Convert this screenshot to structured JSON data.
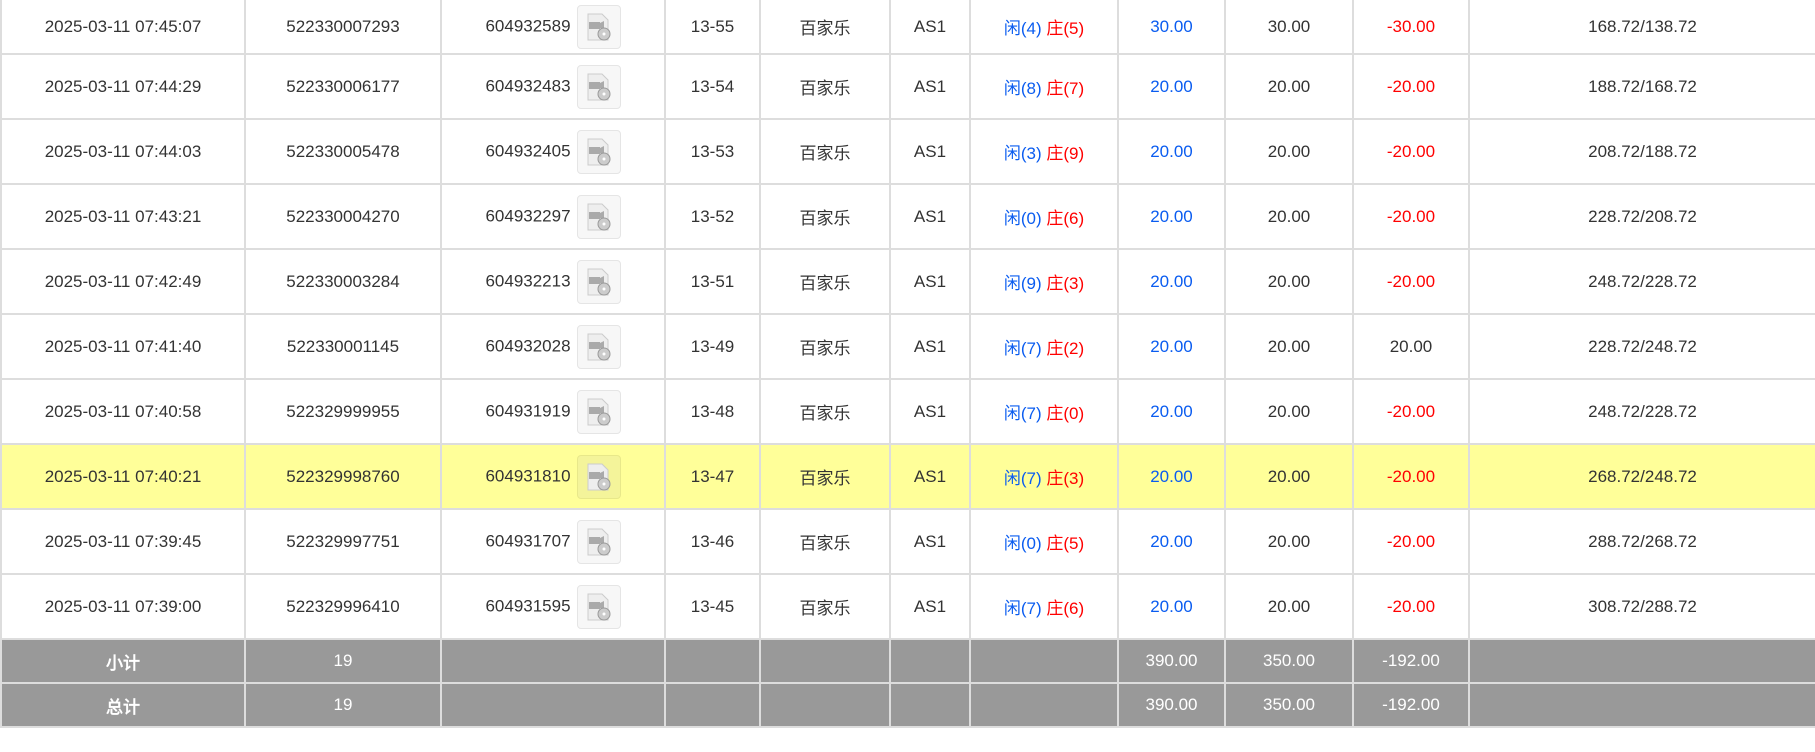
{
  "rows": [
    {
      "time": "2025-03-11 07:45:07",
      "bet_id": "522330007293",
      "round_id": "604932589",
      "shoe": "13-55",
      "game": "百家乐",
      "table": "AS1",
      "player": "闲(4)",
      "banker": "庄(5)",
      "bet": "30.00",
      "valid": "30.00",
      "win": "-30.00",
      "win_color": "red",
      "balance": "168.72/138.72"
    },
    {
      "time": "2025-03-11 07:44:29",
      "bet_id": "522330006177",
      "round_id": "604932483",
      "shoe": "13-54",
      "game": "百家乐",
      "table": "AS1",
      "player": "闲(8)",
      "banker": "庄(7)",
      "bet": "20.00",
      "valid": "20.00",
      "win": "-20.00",
      "win_color": "red",
      "balance": "188.72/168.72"
    },
    {
      "time": "2025-03-11 07:44:03",
      "bet_id": "522330005478",
      "round_id": "604932405",
      "shoe": "13-53",
      "game": "百家乐",
      "table": "AS1",
      "player": "闲(3)",
      "banker": "庄(9)",
      "bet": "20.00",
      "valid": "20.00",
      "win": "-20.00",
      "win_color": "red",
      "balance": "208.72/188.72"
    },
    {
      "time": "2025-03-11 07:43:21",
      "bet_id": "522330004270",
      "round_id": "604932297",
      "shoe": "13-52",
      "game": "百家乐",
      "table": "AS1",
      "player": "闲(0)",
      "banker": "庄(6)",
      "bet": "20.00",
      "valid": "20.00",
      "win": "-20.00",
      "win_color": "red",
      "balance": "228.72/208.72"
    },
    {
      "time": "2025-03-11 07:42:49",
      "bet_id": "522330003284",
      "round_id": "604932213",
      "shoe": "13-51",
      "game": "百家乐",
      "table": "AS1",
      "player": "闲(9)",
      "banker": "庄(3)",
      "bet": "20.00",
      "valid": "20.00",
      "win": "-20.00",
      "win_color": "red",
      "balance": "248.72/228.72"
    },
    {
      "time": "2025-03-11 07:41:40",
      "bet_id": "522330001145",
      "round_id": "604932028",
      "shoe": "13-49",
      "game": "百家乐",
      "table": "AS1",
      "player": "闲(7)",
      "banker": "庄(2)",
      "bet": "20.00",
      "valid": "20.00",
      "win": "20.00",
      "win_color": "black",
      "balance": "228.72/248.72"
    },
    {
      "time": "2025-03-11 07:40:58",
      "bet_id": "522329999955",
      "round_id": "604931919",
      "shoe": "13-48",
      "game": "百家乐",
      "table": "AS1",
      "player": "闲(7)",
      "banker": "庄(0)",
      "bet": "20.00",
      "valid": "20.00",
      "win": "-20.00",
      "win_color": "red",
      "balance": "248.72/228.72"
    },
    {
      "time": "2025-03-11 07:40:21",
      "bet_id": "522329998760",
      "round_id": "604931810",
      "shoe": "13-47",
      "game": "百家乐",
      "table": "AS1",
      "player": "闲(7)",
      "banker": "庄(3)",
      "bet": "20.00",
      "valid": "20.00",
      "win": "-20.00",
      "win_color": "red",
      "balance": "268.72/248.72",
      "highlighted": true
    },
    {
      "time": "2025-03-11 07:39:45",
      "bet_id": "522329997751",
      "round_id": "604931707",
      "shoe": "13-46",
      "game": "百家乐",
      "table": "AS1",
      "player": "闲(0)",
      "banker": "庄(5)",
      "bet": "20.00",
      "valid": "20.00",
      "win": "-20.00",
      "win_color": "red",
      "balance": "288.72/268.72"
    },
    {
      "time": "2025-03-11 07:39:00",
      "bet_id": "522329996410",
      "round_id": "604931595",
      "shoe": "13-45",
      "game": "百家乐",
      "table": "AS1",
      "player": "闲(7)",
      "banker": "庄(6)",
      "bet": "20.00",
      "valid": "20.00",
      "win": "-20.00",
      "win_color": "red",
      "balance": "308.72/288.72"
    }
  ],
  "subtotal": {
    "label": "小计",
    "count": "19",
    "bet": "390.00",
    "valid": "350.00",
    "win": "-192.00"
  },
  "total": {
    "label": "总计",
    "count": "19",
    "bet": "390.00",
    "valid": "350.00",
    "win": "-192.00"
  },
  "colors": {
    "player": "#0a5cf0",
    "loss": "#ff0000",
    "highlight": "#ffff99",
    "summary_bg": "#999999"
  },
  "icons": {
    "replay": "video-file-icon"
  }
}
